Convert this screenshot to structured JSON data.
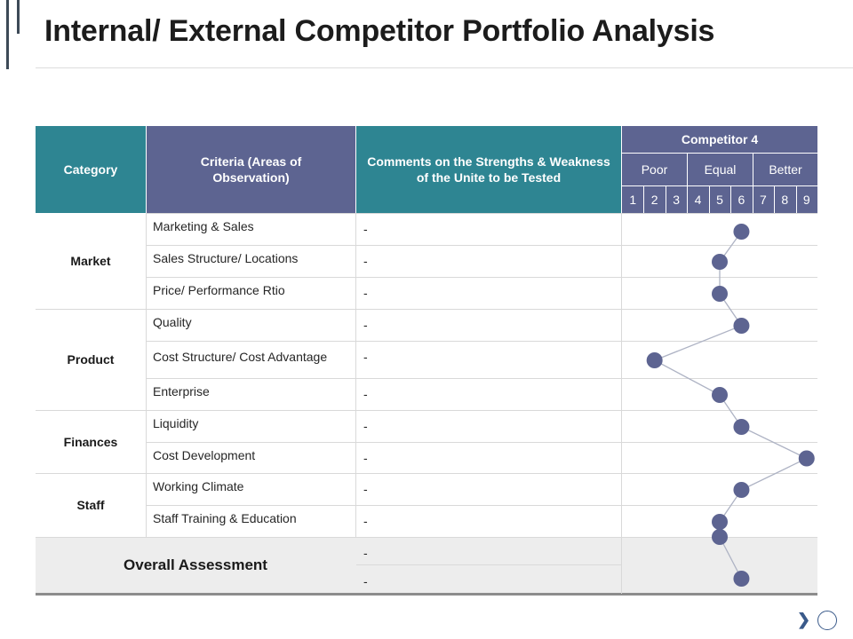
{
  "title": "Internal/ External Competitor Portfolio Analysis",
  "header": {
    "category": "Category",
    "criteria": "Criteria (Areas of Observation)",
    "comments": "Comments on the Strengths & Weakness of the Unite to be Tested",
    "competitor": "Competitor 4",
    "groups": [
      "Poor",
      "Equal",
      "Better"
    ],
    "scale": [
      "1",
      "2",
      "3",
      "4",
      "5",
      "6",
      "7",
      "8",
      "9"
    ]
  },
  "categories": [
    "Market",
    "Product",
    "Finances",
    "Staff"
  ],
  "rows": [
    {
      "criteria": "Marketing & Sales",
      "comment": "-",
      "rating": 6
    },
    {
      "criteria": "Sales Structure/ Locations",
      "comment": "-",
      "rating": 5
    },
    {
      "criteria": "Price/ Performance Rtio",
      "comment": "-",
      "rating": 5
    },
    {
      "criteria": "Quality",
      "comment": "-",
      "rating": 6
    },
    {
      "criteria": "Cost Structure/ Cost Advantage",
      "comment": "-",
      "rating": 2
    },
    {
      "criteria": "Enterprise",
      "comment": "-",
      "rating": 5
    },
    {
      "criteria": "Liquidity",
      "comment": "-",
      "rating": 6
    },
    {
      "criteria": "Cost Development",
      "comment": "-",
      "rating": 9
    },
    {
      "criteria": "Working Climate",
      "comment": "-",
      "rating": 6
    },
    {
      "criteria": "Staff Training & Education",
      "comment": "-",
      "rating": 5
    }
  ],
  "overall": {
    "label": "Overall Assessment",
    "comments": [
      "-",
      "-"
    ],
    "rating": 6
  },
  "colors": {
    "teal": "#2e8592",
    "purple": "#5d6491",
    "marker": "#5d6491",
    "line": "#aeb3c4"
  }
}
